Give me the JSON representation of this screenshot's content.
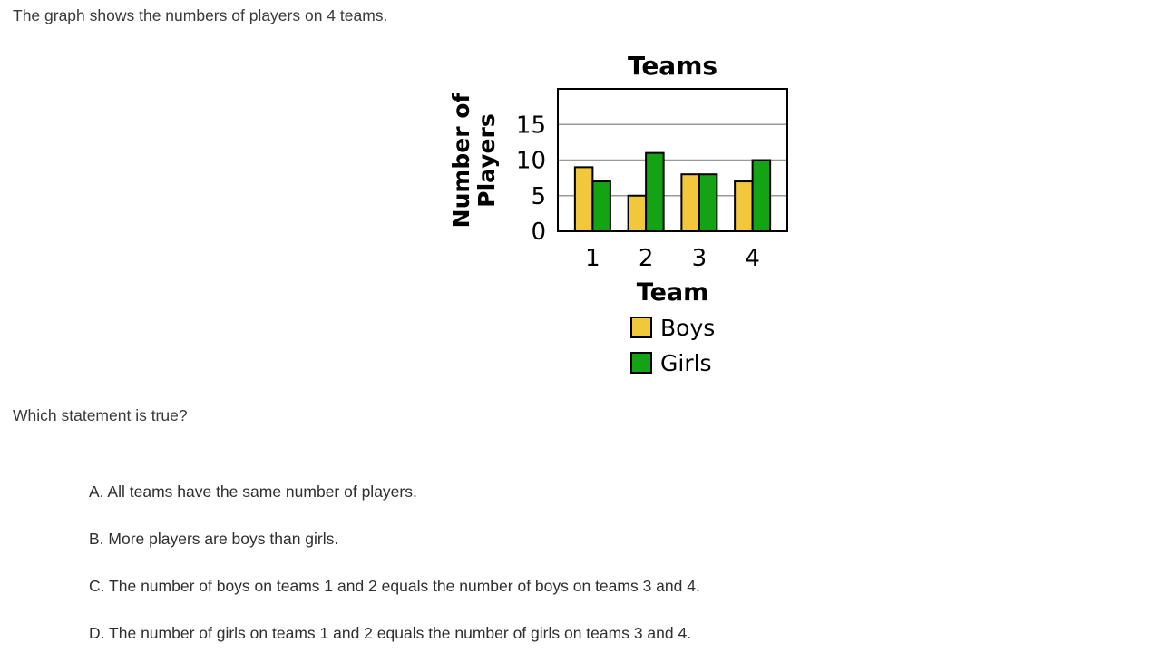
{
  "page": {
    "intro": "The graph shows the numbers of players on 4 teams.",
    "question": "Which statement is true?",
    "options": [
      "A. All teams have the same number of players.",
      "B. More players are boys than girls.",
      "C. The number of boys on teams 1 and 2 equals the number of boys on teams 3 and 4.",
      "D. The number of girls on teams 1 and 2 equals the number of girls on teams 3 and 4."
    ]
  },
  "chart_data": {
    "type": "bar",
    "title": "Teams",
    "xlabel": "Team",
    "ylabel": "Number of Players",
    "categories": [
      "1",
      "2",
      "3",
      "4"
    ],
    "series": [
      {
        "name": "Boys",
        "color": "#F2C73C",
        "values": [
          9,
          5,
          8,
          7
        ]
      },
      {
        "name": "Girls",
        "color": "#14A314",
        "values": [
          7,
          11,
          8,
          10
        ]
      }
    ],
    "ylim": [
      0,
      20
    ],
    "yticks": [
      0,
      5,
      10,
      15
    ],
    "grid": true,
    "legend_position": "below",
    "gridline_color": "#999999",
    "bar_border_color": "#000000",
    "plot_border_color": "#000000"
  }
}
